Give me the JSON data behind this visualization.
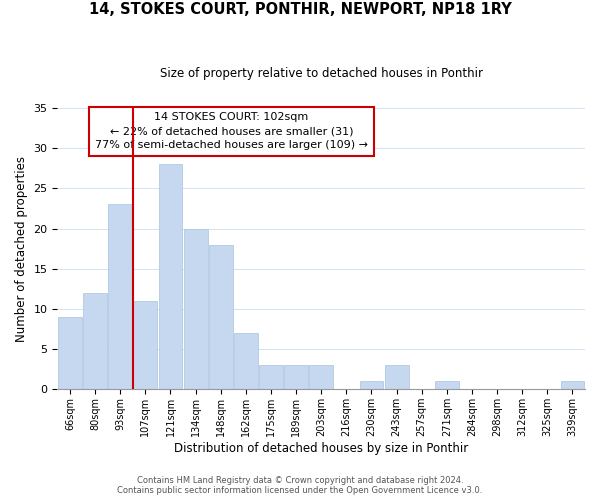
{
  "title": "14, STOKES COURT, PONTHIR, NEWPORT, NP18 1RY",
  "subtitle": "Size of property relative to detached houses in Ponthir",
  "xlabel": "Distribution of detached houses by size in Ponthir",
  "ylabel": "Number of detached properties",
  "categories": [
    "66sqm",
    "80sqm",
    "93sqm",
    "107sqm",
    "121sqm",
    "134sqm",
    "148sqm",
    "162sqm",
    "175sqm",
    "189sqm",
    "203sqm",
    "216sqm",
    "230sqm",
    "243sqm",
    "257sqm",
    "271sqm",
    "284sqm",
    "298sqm",
    "312sqm",
    "325sqm",
    "339sqm"
  ],
  "values": [
    9,
    12,
    23,
    11,
    28,
    20,
    18,
    7,
    3,
    3,
    3,
    0,
    1,
    3,
    0,
    1,
    0,
    0,
    0,
    0,
    1
  ],
  "bar_color": "#c5d8f0",
  "bar_edge_color": "#a8c4e0",
  "vline_color": "#cc0000",
  "ylim": [
    0,
    35
  ],
  "yticks": [
    0,
    5,
    10,
    15,
    20,
    25,
    30,
    35
  ],
  "annotation_title": "14 STOKES COURT: 102sqm",
  "annotation_line1": "← 22% of detached houses are smaller (31)",
  "annotation_line2": "77% of semi-detached houses are larger (109) →",
  "annotation_box_color": "#ffffff",
  "annotation_box_edge": "#cc0000",
  "footer1": "Contains HM Land Registry data © Crown copyright and database right 2024.",
  "footer2": "Contains public sector information licensed under the Open Government Licence v3.0.",
  "background_color": "#ffffff",
  "grid_color": "#d0e4f5"
}
